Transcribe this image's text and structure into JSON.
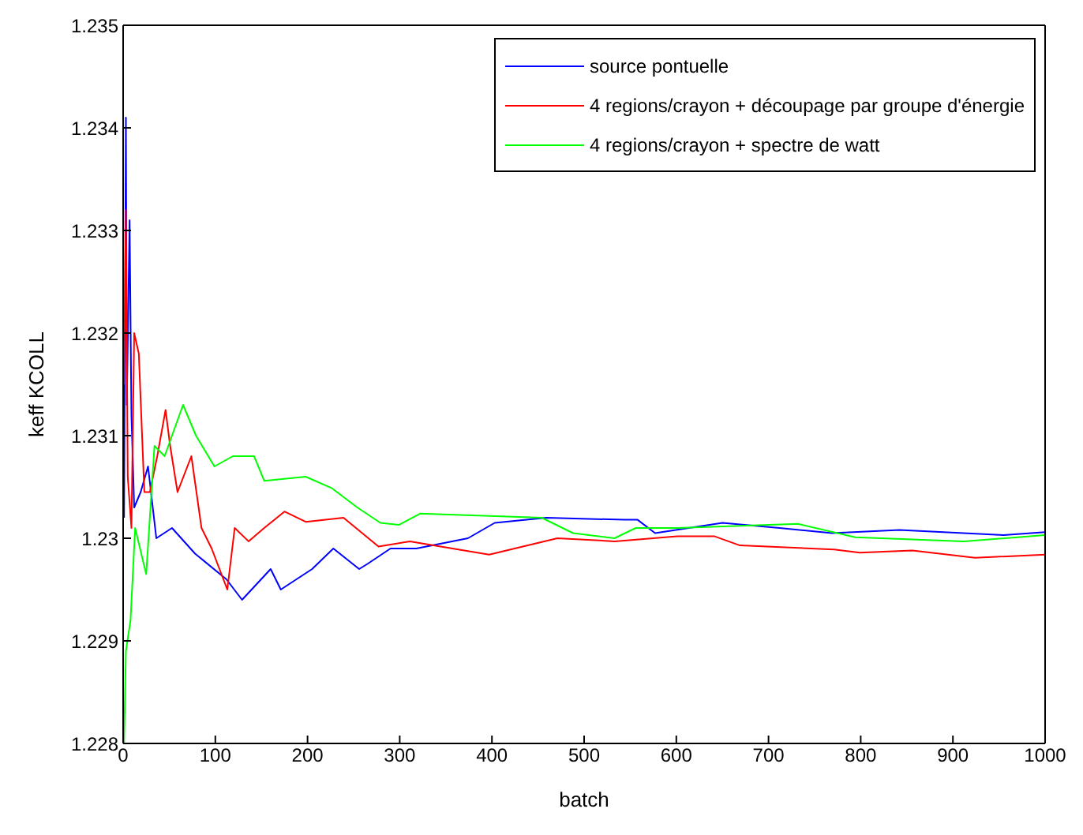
{
  "chart_data": {
    "type": "line",
    "xlabel": "batch",
    "ylabel": "keff KCOLL",
    "xlim": [
      0,
      1000
    ],
    "xticks": [
      0,
      100,
      200,
      300,
      400,
      500,
      600,
      700,
      800,
      900,
      1000
    ],
    "ylim": [
      1.228,
      1.235
    ],
    "yticks": [
      1.228,
      1.229,
      1.23,
      1.231,
      1.232,
      1.233,
      1.234,
      1.235
    ],
    "grid": false,
    "legend": "top right",
    "marker": "none",
    "line_style": "solid",
    "series": [
      {
        "name": "source pontuelle",
        "color": "#0000ff",
        "x": [
          1,
          3,
          4,
          7,
          9,
          12,
          19,
          27,
          36,
          53,
          78,
          112,
          129,
          160,
          171,
          205,
          228,
          256,
          265,
          290,
          318,
          374,
          403,
          459,
          544,
          558,
          577,
          650,
          712,
          769,
          842,
          955,
          1000
        ],
        "values": [
          1.2302,
          1.2341,
          1.2313,
          1.2331,
          1.2312,
          1.2303,
          1.23045,
          1.2307,
          1.23,
          1.2301,
          1.22985,
          1.2296,
          1.2294,
          1.2297,
          1.2295,
          1.2297,
          1.2299,
          1.2297,
          1.22975,
          1.2299,
          1.2299,
          1.23,
          1.23015,
          1.2302,
          1.23018,
          1.23018,
          1.23005,
          1.23015,
          1.2301,
          1.23005,
          1.23008,
          1.23003,
          1.23006
        ]
      },
      {
        "name": "4 regions/crayon + découpage par groupe d'énergie",
        "color": "#ff0000",
        "x": [
          1,
          3,
          5,
          9,
          12,
          17,
          23,
          29,
          37,
          46,
          51,
          59,
          74,
          85,
          96,
          113,
          121,
          136,
          153,
          175,
          198,
          239,
          277,
          311,
          397,
          471,
          533,
          601,
          641,
          669,
          771,
          799,
          856,
          924,
          1000
        ],
        "values": [
          1.2315,
          1.2332,
          1.2306,
          1.2301,
          1.232,
          1.2318,
          1.23045,
          1.23045,
          1.2308,
          1.23125,
          1.2309,
          1.23045,
          1.2308,
          1.2301,
          1.2299,
          1.2295,
          1.2301,
          1.22997,
          1.2301,
          1.23026,
          1.23016,
          1.2302,
          1.22992,
          1.22997,
          1.22984,
          1.23,
          1.22997,
          1.23002,
          1.23002,
          1.22993,
          1.22989,
          1.22986,
          1.22988,
          1.22981,
          1.22984
        ]
      },
      {
        "name": "4 regions/crayon + spectre de watt",
        "color": "#00ff00",
        "x": [
          1,
          3,
          8,
          13,
          25,
          34,
          45,
          65,
          79,
          99,
          119,
          142,
          153,
          198,
          226,
          254,
          279,
          299,
          322,
          454,
          488,
          533,
          556,
          601,
          732,
          794,
          912,
          1000
        ],
        "values": [
          1.228,
          1.2289,
          1.2292,
          1.2301,
          1.22965,
          1.2309,
          1.2308,
          1.2313,
          1.231,
          1.2307,
          1.2308,
          1.2308,
          1.23056,
          1.2306,
          1.23049,
          1.2303,
          1.23015,
          1.23013,
          1.23024,
          1.2302,
          1.23005,
          1.23,
          1.2301,
          1.2301,
          1.23014,
          1.23001,
          1.22997,
          1.23003
        ]
      }
    ]
  }
}
